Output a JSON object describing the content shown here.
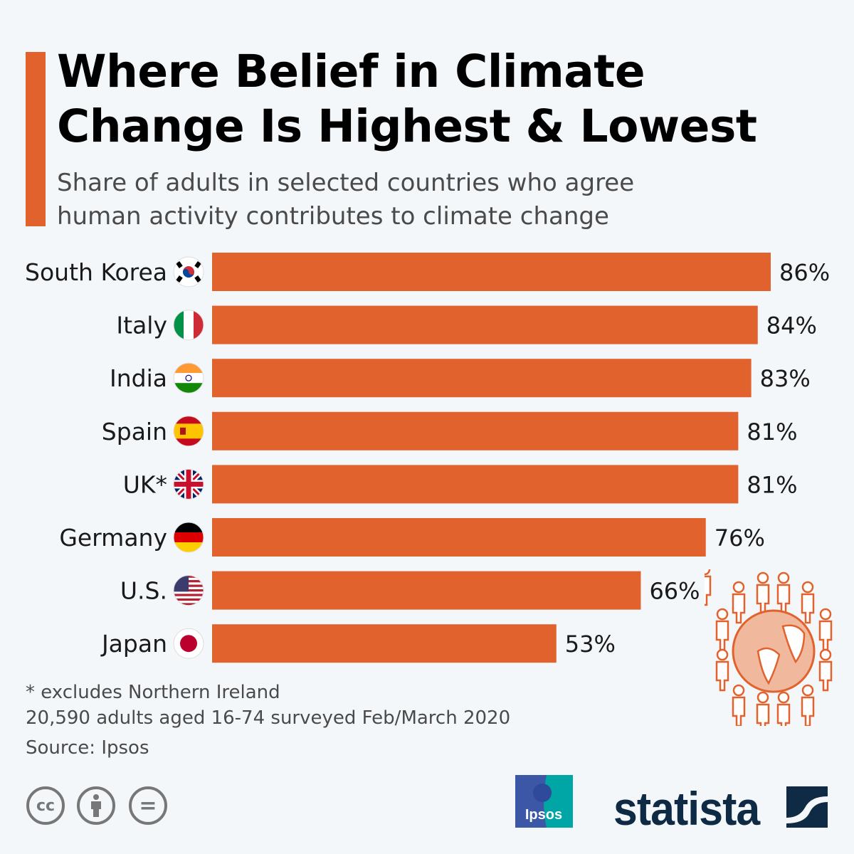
{
  "header": {
    "title_line1": "Where Belief in Climate",
    "title_line2": "Change Is Highest & Lowest",
    "subtitle_line1": "Share of adults in selected countries who agree",
    "subtitle_line2": "human activity contributes to climate change"
  },
  "colors": {
    "accent": "#e2622e",
    "bar": "#e2622e",
    "brand_dark": "#0f2a44"
  },
  "chart_data": {
    "type": "bar",
    "orientation": "horizontal",
    "categories": [
      "South Korea",
      "Italy",
      "India",
      "Spain",
      "UK*",
      "Germany",
      "U.S.",
      "Japan"
    ],
    "flags": [
      "south-korea-flag",
      "italy-flag",
      "india-flag",
      "spain-flag",
      "uk-flag",
      "germany-flag",
      "us-flag",
      "japan-flag"
    ],
    "values": [
      86,
      84,
      83,
      81,
      81,
      76,
      66,
      53
    ],
    "value_labels": [
      "86%",
      "84%",
      "83%",
      "81%",
      "81%",
      "76%",
      "66%",
      "53%"
    ],
    "unit": "%",
    "xlim": [
      0,
      86
    ],
    "grid": false
  },
  "footer": {
    "note": "* excludes Northern Ireland",
    "survey": "20,590 adults aged 16-74 surveyed Feb/March 2020",
    "source": "Source: Ipsos",
    "ipsos_logo": "Ipsos",
    "statista_logo": "statista",
    "cc_label": "cc",
    "nd_label": "="
  }
}
